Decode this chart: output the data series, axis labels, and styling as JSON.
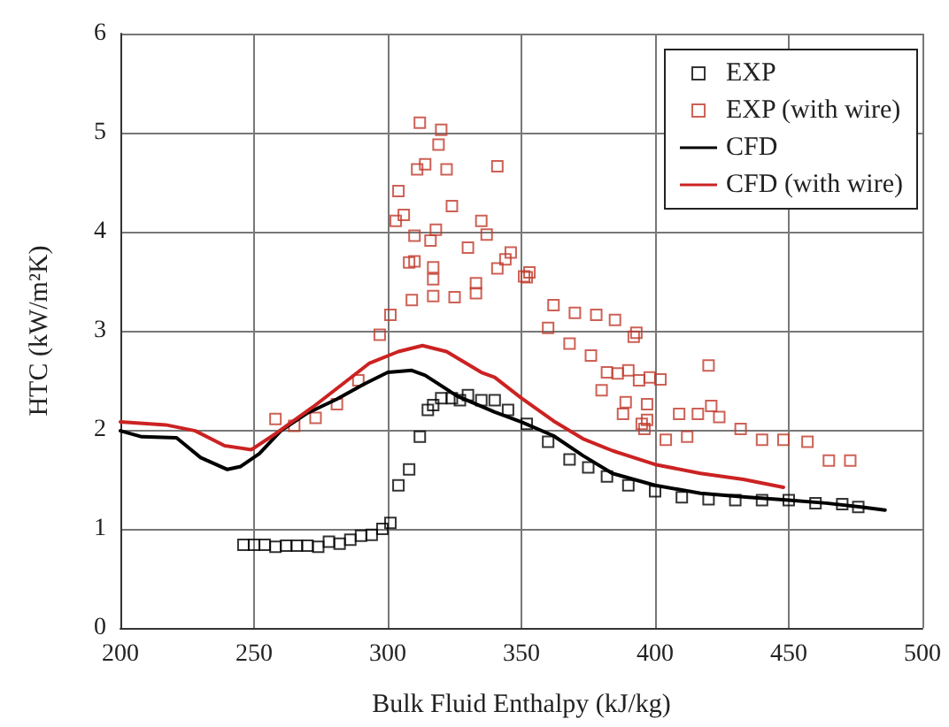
{
  "chart_data": {
    "type": "scatter",
    "xlabel": "Bulk Fluid Enthalpy (kJ/kg)",
    "ylabel": "HTC (kW/m²K)",
    "xlim": [
      200,
      500
    ],
    "xticks": [
      200,
      250,
      300,
      350,
      400,
      450,
      500
    ],
    "ylim": [
      0,
      6
    ],
    "yticks": [
      0,
      1,
      2,
      3,
      4,
      5,
      6
    ],
    "grid": true,
    "legend": "top right",
    "series": [
      {
        "name": "EXP",
        "marker": "square",
        "color": "#000000",
        "x": [
          246,
          250,
          254,
          258,
          262,
          266,
          270,
          274,
          278,
          282,
          286,
          290,
          294,
          298,
          301,
          304,
          308,
          312,
          315,
          317,
          320,
          324,
          327,
          330,
          335,
          340,
          345,
          352,
          360,
          368,
          375,
          382,
          390,
          400,
          410,
          420,
          430,
          440,
          450,
          460,
          470,
          476
        ],
        "values": [
          0.84,
          0.84,
          0.84,
          0.82,
          0.83,
          0.83,
          0.83,
          0.82,
          0.87,
          0.85,
          0.89,
          0.93,
          0.94,
          1.0,
          1.06,
          1.44,
          1.6,
          1.93,
          2.2,
          2.25,
          2.32,
          2.32,
          2.3,
          2.35,
          2.3,
          2.3,
          2.2,
          2.06,
          1.88,
          1.7,
          1.62,
          1.53,
          1.44,
          1.38,
          1.32,
          1.3,
          1.29,
          1.29,
          1.29,
          1.26,
          1.25,
          1.22
        ]
      },
      {
        "name": "EXP (with wire)",
        "marker": "square",
        "color": "#c0392b",
        "x": [
          258,
          265,
          273,
          281,
          289,
          297,
          301,
          303,
          304,
          306,
          308,
          309,
          310,
          310,
          311,
          312,
          314,
          316,
          317,
          317,
          317,
          318,
          319,
          320,
          322,
          324,
          325,
          330,
          333,
          333,
          335,
          337,
          341,
          341,
          344,
          346,
          351,
          352,
          353,
          360,
          362,
          368,
          370,
          376,
          378,
          380,
          382,
          385,
          386,
          388,
          389,
          390,
          392,
          393,
          394,
          395,
          396,
          397,
          397,
          398,
          402,
          404,
          409,
          412,
          416,
          420,
          421,
          424,
          432,
          440,
          448,
          457,
          465,
          473
        ],
        "values": [
          2.11,
          2.04,
          2.12,
          2.26,
          2.5,
          2.96,
          3.16,
          4.11,
          4.41,
          4.17,
          3.69,
          3.31,
          3.7,
          3.96,
          4.63,
          5.1,
          4.68,
          3.91,
          3.64,
          3.52,
          3.35,
          4.02,
          4.88,
          5.03,
          4.63,
          4.26,
          3.34,
          3.84,
          3.48,
          3.38,
          4.11,
          3.97,
          4.66,
          3.63,
          3.72,
          3.79,
          3.55,
          3.54,
          3.59,
          3.03,
          3.26,
          2.87,
          3.18,
          2.75,
          3.16,
          2.4,
          2.58,
          3.11,
          2.57,
          2.16,
          2.28,
          2.6,
          2.94,
          2.98,
          2.5,
          2.06,
          2.01,
          2.26,
          2.1,
          2.53,
          2.51,
          1.9,
          2.16,
          1.93,
          2.16,
          2.65,
          2.24,
          2.13,
          2.01,
          1.9,
          1.9,
          1.88,
          1.69,
          1.69
        ]
      },
      {
        "name": "CFD",
        "type": "line",
        "marker": "none",
        "line_style": "solid",
        "color": "#000000",
        "x": [
          200,
          208,
          221,
          230,
          240,
          245,
          252,
          260,
          270,
          281,
          291,
          300,
          309,
          314,
          326,
          340,
          350,
          362,
          373,
          384,
          400,
          417,
          435,
          450,
          464,
          477,
          486
        ],
        "values": [
          1.99,
          1.93,
          1.92,
          1.72,
          1.6,
          1.63,
          1.76,
          1.99,
          2.17,
          2.31,
          2.46,
          2.58,
          2.6,
          2.55,
          2.34,
          2.18,
          2.08,
          1.94,
          1.74,
          1.56,
          1.44,
          1.36,
          1.32,
          1.29,
          1.26,
          1.22,
          1.19
        ]
      },
      {
        "name": "CFD (with wire)",
        "type": "line",
        "marker": "none",
        "line_style": "solid",
        "color": "#cc2222",
        "x": [
          200,
          217,
          228,
          239,
          249,
          258,
          272,
          283,
          293,
          304,
          313,
          322,
          335,
          340,
          350,
          362,
          373,
          384,
          400,
          417,
          433,
          448
        ],
        "values": [
          2.08,
          2.05,
          1.99,
          1.84,
          1.8,
          1.96,
          2.23,
          2.46,
          2.67,
          2.79,
          2.85,
          2.79,
          2.58,
          2.53,
          2.32,
          2.09,
          1.91,
          1.79,
          1.65,
          1.56,
          1.5,
          1.42
        ]
      }
    ]
  }
}
